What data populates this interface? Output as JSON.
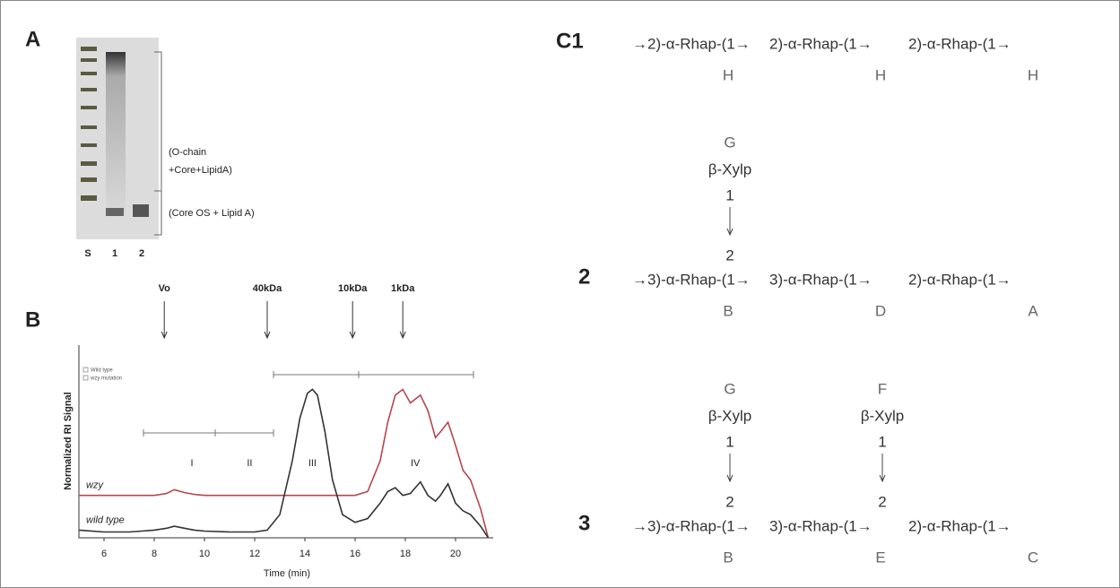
{
  "panel_a": {
    "label": "A",
    "lanes": [
      "S",
      "1",
      "2"
    ],
    "annotations": [
      "(O-chain",
      "+Core+LipidA)",
      "(Core OS + Lipid A)"
    ]
  },
  "chart_data": {
    "type": "line",
    "panel_label": "B",
    "ylabel": "Normalized RI Signal",
    "xlabel": "Time (min)",
    "xlim": [
      5,
      21.5
    ],
    "xticks": [
      6,
      8,
      10,
      12,
      14,
      16,
      18,
      20
    ],
    "ylim": [
      0,
      1
    ],
    "legend": [
      "Wild type",
      "wzy mutation"
    ],
    "markers": [
      {
        "label": "Vo",
        "x": 8.4
      },
      {
        "label": "40kDa",
        "x": 12.5
      },
      {
        "label": "10kDa",
        "x": 15.9
      },
      {
        "label": "1kDa",
        "x": 17.9
      }
    ],
    "fractions": [
      {
        "label": "I",
        "x": 9.5
      },
      {
        "label": "II",
        "x": 11.8
      },
      {
        "label": "III",
        "x": 14.3
      },
      {
        "label": "IV",
        "x": 18.4
      }
    ],
    "x": [
      5,
      6,
      7,
      7.5,
      8,
      8.5,
      8.8,
      9.2,
      9.6,
      10,
      11,
      12,
      12.5,
      13,
      13.5,
      13.8,
      14.1,
      14.3,
      14.5,
      14.8,
      15.1,
      15.5,
      16,
      16.5,
      17,
      17.3,
      17.6,
      17.9,
      18.2,
      18.6,
      18.9,
      19.2,
      19.4,
      19.7,
      20,
      20.3,
      20.6,
      21,
      21.3
    ],
    "series": [
      {
        "name": "wzy",
        "color": "#b5454f",
        "values": [
          0.22,
          0.22,
          0.22,
          0.22,
          0.22,
          0.23,
          0.25,
          0.235,
          0.225,
          0.22,
          0.22,
          0.22,
          0.22,
          0.22,
          0.22,
          0.22,
          0.22,
          0.22,
          0.22,
          0.22,
          0.22,
          0.22,
          0.22,
          0.24,
          0.4,
          0.6,
          0.74,
          0.77,
          0.7,
          0.74,
          0.66,
          0.52,
          0.55,
          0.6,
          0.48,
          0.35,
          0.3,
          0.15,
          0
        ]
      },
      {
        "name": "wild type",
        "color": "#333333",
        "values": [
          0.04,
          0.03,
          0.03,
          0.035,
          0.04,
          0.05,
          0.06,
          0.05,
          0.04,
          0.035,
          0.03,
          0.03,
          0.04,
          0.12,
          0.4,
          0.62,
          0.75,
          0.77,
          0.74,
          0.55,
          0.3,
          0.12,
          0.08,
          0.1,
          0.18,
          0.24,
          0.26,
          0.22,
          0.23,
          0.29,
          0.22,
          0.19,
          0.22,
          0.28,
          0.18,
          0.14,
          0.12,
          0.06,
          0
        ]
      }
    ]
  },
  "panel_c": {
    "rows": [
      {
        "label": "C1",
        "units": [
          {
            "text": "→2)-α-Rhap-(1→",
            "residue": "H"
          },
          {
            "text": "2)-α-Rhap-(1→",
            "residue": "H"
          },
          {
            "text": "2)-α-Rhap-(1→",
            "residue": "H"
          }
        ]
      },
      {
        "label": "2",
        "units": [
          {
            "text": "→3)-α-Rhap-(1→",
            "residue": "B",
            "branch": {
              "residue": "G",
              "sugar": "β-Xylp",
              "from": "1",
              "to": "2"
            }
          },
          {
            "text": "3)-α-Rhap-(1→",
            "residue": "D"
          },
          {
            "text": "2)-α-Rhap-(1→",
            "residue": "A"
          }
        ]
      },
      {
        "label": "3",
        "units": [
          {
            "text": "→3)-α-Rhap-(1→",
            "residue": "B",
            "branch": {
              "residue": "G",
              "sugar": "β-Xylp",
              "from": "1",
              "to": "2"
            }
          },
          {
            "text": "3)-α-Rhap-(1→",
            "residue": "E",
            "branch": {
              "residue": "F",
              "sugar": "β-Xylp",
              "from": "1",
              "to": "2"
            }
          },
          {
            "text": "2)-α-Rhap-(1→",
            "residue": "C"
          }
        ]
      }
    ]
  }
}
